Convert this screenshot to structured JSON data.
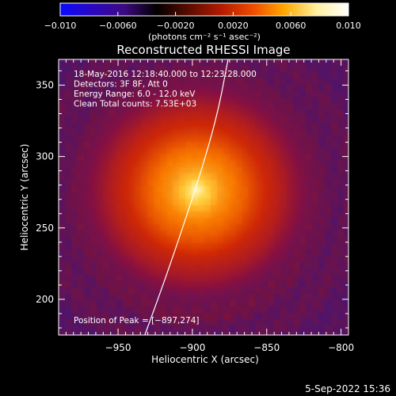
{
  "chart_data": {
    "type": "heatmap",
    "title": "Reconstructed RHESSI Image",
    "xlabel": "Heliocentric X (arcsec)",
    "ylabel": "Heliocentric Y (arcsec)",
    "xlim": [
      -990,
      -795
    ],
    "ylim": [
      175,
      368
    ],
    "xticks": [
      -950,
      -900,
      -850,
      -800
    ],
    "xtick_labels": [
      "−950",
      "−900",
      "−850",
      "−800"
    ],
    "yticks": [
      200,
      250,
      300,
      350
    ],
    "ytick_labels": [
      "200",
      "250",
      "300",
      "350"
    ],
    "colorbar": {
      "range": [
        -0.01,
        0.01
      ],
      "ticks": [
        -0.01,
        -0.006,
        -0.002,
        0.002,
        0.006,
        0.01
      ],
      "tick_labels": [
        "−0.010",
        "−0.0060",
        "−0.0020",
        "0.0020",
        "0.0060",
        "0.010"
      ],
      "unit_label": "(photons cm⁻² s⁻¹ asec⁻²)",
      "colormap": [
        "#0a0aff",
        "#2a08c0",
        "#3d0a80",
        "#000000",
        "#5a0c00",
        "#b01a00",
        "#ee4a00",
        "#ffa800",
        "#fff0a0",
        "#ffffff"
      ]
    },
    "info_lines": [
      "18-May-2016 12:18:40.000 to 12:23:28.000",
      "Detectors: 3F 8F, Att 0",
      "Energy Range: 6.0 - 12.0 keV",
      "Clean     Total counts: 7.53E+03"
    ],
    "peak_label": "Position of Peak = [−897,274]",
    "peak": {
      "x": -897,
      "y": 274
    },
    "limb_curve": [
      {
        "x": -932,
        "y": 175
      },
      {
        "x": -918,
        "y": 215
      },
      {
        "x": -905,
        "y": 255
      },
      {
        "x": -894,
        "y": 290
      },
      {
        "x": -883,
        "y": 330
      },
      {
        "x": -876,
        "y": 368
      }
    ],
    "background_hue": "#4a1470"
  },
  "footer": {
    "date": "5-Sep-2022 15:36"
  }
}
